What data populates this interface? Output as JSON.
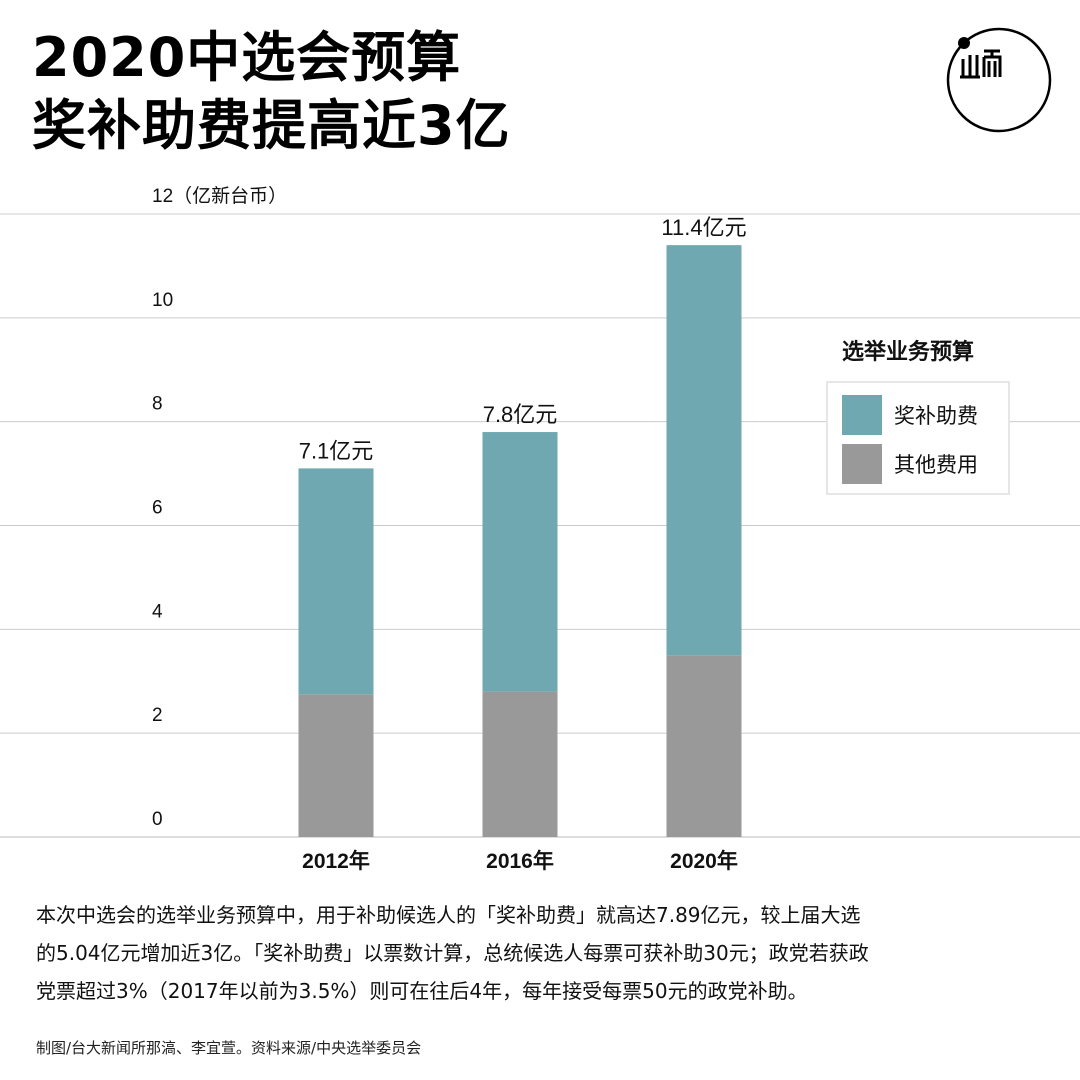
{
  "title": {
    "line1": "2020中选会预算",
    "line2": "奖补助费提高近3亿"
  },
  "logo": {
    "text": "山而"
  },
  "colors": {
    "subsidy": "#6fa8b0",
    "other": "#999999",
    "grid": "#cccccc",
    "background": "#ffffff"
  },
  "chart_data": {
    "type": "bar",
    "stacked": true,
    "categories": [
      "2012年",
      "2016年",
      "2020年"
    ],
    "series": [
      {
        "name": "其他费用",
        "values": [
          2.75,
          2.8,
          3.5
        ]
      },
      {
        "name": "奖补助费",
        "values": [
          4.35,
          5.0,
          7.9
        ]
      }
    ],
    "totals_labels": [
      "7.1亿元",
      "7.8亿元",
      "11.4亿元"
    ],
    "y_ticks": [
      "0",
      "2",
      "4",
      "6",
      "8",
      "10",
      "12"
    ],
    "y_unit": "（亿新台币）",
    "ylim": [
      0,
      12
    ],
    "legend_title": "选举业务预算",
    "legend_order": [
      "奖补助费",
      "其他费用"
    ],
    "legend_position": "right",
    "grid": true
  },
  "body_text": {
    "line1": "本次中选会的选举业务预算中，用于补助候选人的「奖补助费」就高达7.89亿元，较上届大选",
    "line2": "的5.04亿元增加近3亿。「奖补助费」以票数计算，总统候选人每票可获补助30元；政党若获政",
    "line3": "党票超过3%（2017年以前为3.5%）则可在往后4年，每年接受每票50元的政党补助。"
  },
  "credit": "制图/台大新闻所那滈、李宜萱。资料来源/中央选举委员会"
}
